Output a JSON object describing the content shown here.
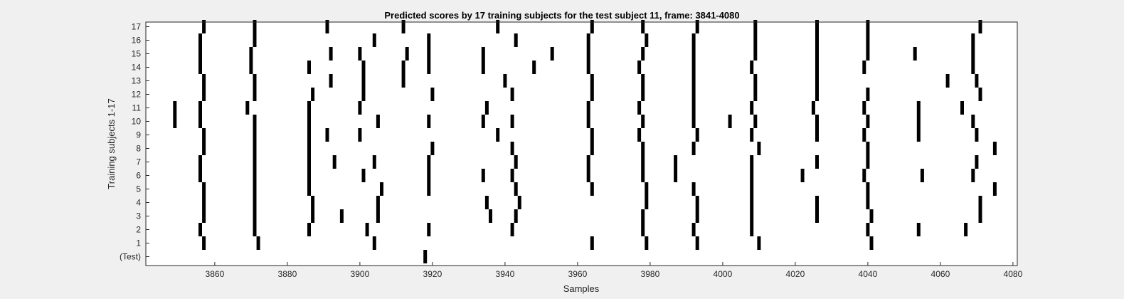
{
  "chart_data": {
    "type": "scatter",
    "title": "Predicted scores by 17 training subjects for the test subject 11, frame: 3841-4080",
    "xlabel": "Samples",
    "ylabel": "Training subjects 1-17",
    "xlim": [
      3841,
      4080
    ],
    "xticks": [
      3860,
      3880,
      3900,
      3920,
      3940,
      3960,
      3980,
      4000,
      4020,
      4040,
      4060,
      4080
    ],
    "yticks": [
      "(Test)",
      "1",
      "2",
      "3",
      "4",
      "5",
      "6",
      "7",
      "8",
      "9",
      "10",
      "11",
      "12",
      "13",
      "14",
      "15",
      "16",
      "17"
    ],
    "grid": false,
    "mark_color": "#000000",
    "rows": [
      {
        "label": "(Test)",
        "x": [
          3918
        ]
      },
      {
        "label": "1",
        "x": [
          3857,
          3872,
          3904,
          3964,
          3979,
          3993,
          4010,
          4041
        ]
      },
      {
        "label": "2",
        "x": [
          3856,
          3871,
          3886,
          3902,
          3919,
          3942,
          3978,
          3992,
          4008,
          4040,
          4054,
          4067
        ]
      },
      {
        "label": "3",
        "x": [
          3857,
          3871,
          3887,
          3895,
          3905,
          3936,
          3943,
          3978,
          3993,
          4008,
          4026,
          4041,
          4071
        ]
      },
      {
        "label": "4",
        "x": [
          3857,
          3871,
          3887,
          3905,
          3935,
          3944,
          3979,
          3993,
          4008,
          4026,
          4040,
          4071
        ]
      },
      {
        "label": "5",
        "x": [
          3857,
          3871,
          3886,
          3906,
          3919,
          3943,
          3964,
          3979,
          3992,
          4008,
          4040,
          4075
        ]
      },
      {
        "label": "6",
        "x": [
          3856,
          3871,
          3886,
          3901,
          3919,
          3934,
          3942,
          3963,
          3978,
          3987,
          4008,
          4022,
          4039,
          4055,
          4069
        ]
      },
      {
        "label": "7",
        "x": [
          3856,
          3871,
          3886,
          3893,
          3904,
          3919,
          3943,
          3963,
          3978,
          3987,
          4008,
          4026,
          4040,
          4070
        ]
      },
      {
        "label": "8",
        "x": [
          3857,
          3871,
          3886,
          3920,
          3942,
          3964,
          3978,
          3992,
          4010,
          4040,
          4075
        ]
      },
      {
        "label": "9",
        "x": [
          3857,
          3871,
          3886,
          3891,
          3900,
          3938,
          3964,
          3977,
          3993,
          4008,
          4026,
          4039,
          4054,
          4070
        ]
      },
      {
        "label": "10",
        "x": [
          3849,
          3856,
          3871,
          3886,
          3905,
          3919,
          3934,
          3942,
          3963,
          3978,
          3992,
          4002,
          4009,
          4026,
          4040,
          4054,
          4069
        ]
      },
      {
        "label": "11",
        "x": [
          3849,
          3856,
          3869,
          3886,
          3900,
          3935,
          3963,
          3977,
          3992,
          4008,
          4025,
          4039,
          4054,
          4066
        ]
      },
      {
        "label": "12",
        "x": [
          3857,
          3871,
          3887,
          3901,
          3920,
          3942,
          3964,
          3978,
          3992,
          4009,
          4026,
          4040,
          4071
        ]
      },
      {
        "label": "13",
        "x": [
          3857,
          3871,
          3892,
          3901,
          3912,
          3940,
          3964,
          3978,
          3992,
          4009,
          4026,
          4062,
          4070
        ]
      },
      {
        "label": "14",
        "x": [
          3856,
          3870,
          3886,
          3901,
          3912,
          3919,
          3934,
          3948,
          3963,
          3977,
          3992,
          4008,
          4026,
          4039,
          4069
        ]
      },
      {
        "label": "15",
        "x": [
          3856,
          3870,
          3892,
          3900,
          3913,
          3919,
          3934,
          3953,
          3963,
          3978,
          3992,
          4009,
          4026,
          4040,
          4053,
          4069
        ]
      },
      {
        "label": "16",
        "x": [
          3856,
          3871,
          3904,
          3919,
          3943,
          3963,
          3979,
          3992,
          4009,
          4026,
          4040,
          4069
        ]
      },
      {
        "label": "17",
        "x": [
          3857,
          3871,
          3891,
          3912,
          3938,
          3964,
          3978,
          3993,
          4009,
          4026,
          4040,
          4071
        ]
      }
    ]
  }
}
